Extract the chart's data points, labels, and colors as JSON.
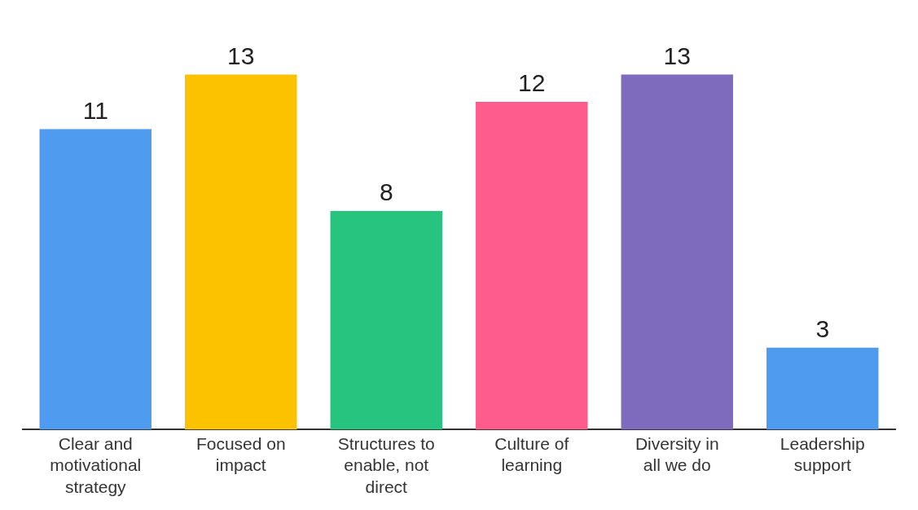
{
  "chart_data": {
    "type": "bar",
    "categories": [
      "Clear and motivational strategy",
      "Focused on impact",
      "Structures to enable, not direct",
      "Culture of learning",
      "Diversity in all we do",
      "Leadership support"
    ],
    "values": [
      11,
      13,
      8,
      12,
      13,
      3
    ],
    "colors": [
      "#4e9bf0",
      "#fcc200",
      "#27c47f",
      "#ff5c8e",
      "#7e6bbd",
      "#4e9bf0"
    ],
    "data_labels": true,
    "grid": false,
    "legend": false
  }
}
